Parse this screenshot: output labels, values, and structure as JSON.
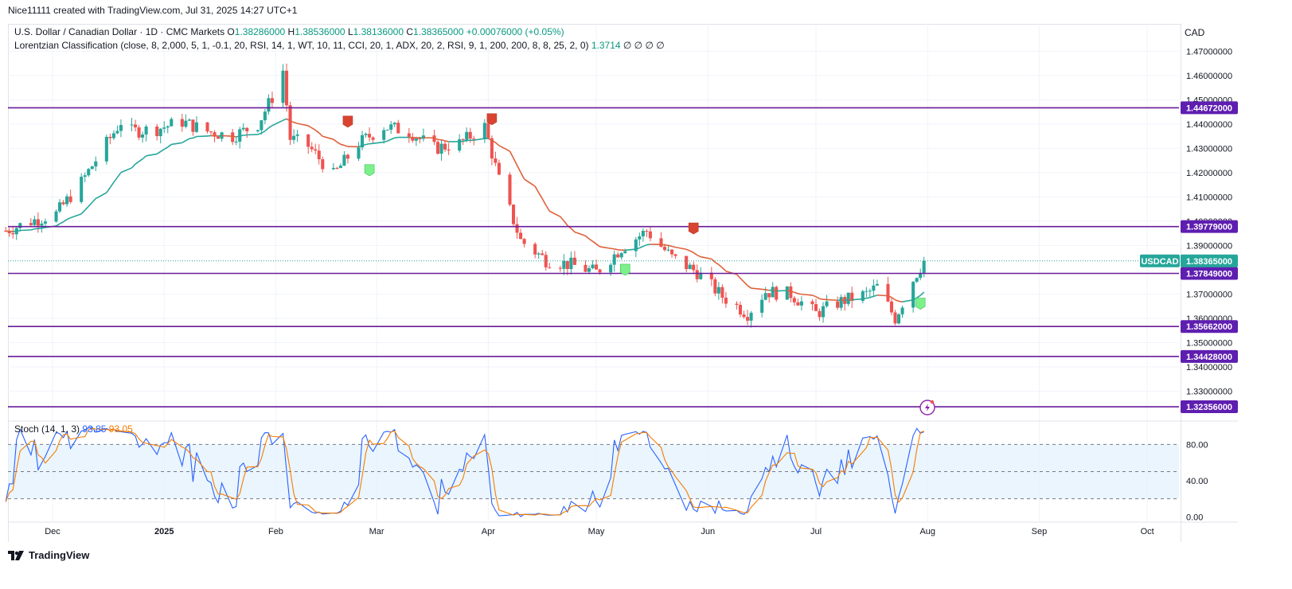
{
  "header": {
    "attribution": "Nice11111 created with TradingView.com, Jul 31, 2025 14:27 UTC+1",
    "currency": "CAD"
  },
  "legend": {
    "symbol": "U.S. Dollar / Canadian Dollar · 1D · CMC Markets",
    "o_label": "O",
    "o": "1.38286000",
    "h_label": "H",
    "h": "1.38536000",
    "l_label": "L",
    "l": "1.38136000",
    "c_label": "C",
    "c": "1.38365000",
    "change": "+0.00076000 (+0.05%)",
    "indicator": "Lorentzian Classification (close, 8, 2,000, 5, 1, -0.1, 20, RSI, 14, 1, WT, 10, 11, CCI, 20, 1, ADX, 20, 2, RSI, 9, 1, 200, 200, 8, 8, 25, 2, 0)",
    "indicator_value": "1.3714",
    "indicator_extra": "∅ ∅ ∅ ∅"
  },
  "stoch": {
    "label": "Stoch (14, 1, 3)",
    "k_value": "93.85",
    "d_value": "93.05",
    "k_color": "#2962ff",
    "d_color": "#f57c00"
  },
  "footer": {
    "brand": "TradingView"
  },
  "colors": {
    "up": "#26a69a",
    "down": "#ef5350",
    "level": "#6a1b9a",
    "level_tag": "#5e1eb0",
    "ma_down": "#e0603a",
    "ma_up": "#26a69a",
    "price_tag": "#26a69a"
  },
  "chart_data": {
    "type": "candlestick",
    "symbol_tag": "USDCAD",
    "last_price": 1.38365,
    "y_ticks": [
      "1.47000000",
      "1.46000000",
      "1.45000000",
      "1.44000000",
      "1.43000000",
      "1.42000000",
      "1.41000000",
      "1.40000000",
      "1.39000000",
      "1.37000000",
      "1.36000000",
      "1.35000000",
      "1.34000000",
      "1.33000000"
    ],
    "ylim": [
      1.318,
      1.478
    ],
    "levels": [
      {
        "value": 1.44672,
        "label": "1.44672000"
      },
      {
        "value": 1.39779,
        "label": "1.39779000"
      },
      {
        "value": 1.37849,
        "label": "1.37849000"
      },
      {
        "value": 1.35662,
        "label": "1.35662000"
      },
      {
        "value": 1.34428,
        "label": "1.34428000"
      },
      {
        "value": 1.32356,
        "label": "1.32356000"
      }
    ],
    "price_label": "1.38365000",
    "x_labels": [
      {
        "label": "Dec",
        "date": "2024-12-01"
      },
      {
        "label": "2025",
        "date": "2025-01-01",
        "bold": true
      },
      {
        "label": "Feb",
        "date": "2025-02-01"
      },
      {
        "label": "Mar",
        "date": "2025-03-01"
      },
      {
        "label": "Apr",
        "date": "2025-04-01"
      },
      {
        "label": "May",
        "date": "2025-05-01"
      },
      {
        "label": "Jun",
        "date": "2025-06-01"
      },
      {
        "label": "Jul",
        "date": "2025-07-01"
      },
      {
        "label": "Aug",
        "date": "2025-08-01"
      },
      {
        "label": "Sep",
        "date": "2025-09-01"
      },
      {
        "label": "Oct",
        "date": "2025-10-01"
      }
    ],
    "close_path": [
      [
        "2024-11-18",
        1.396
      ],
      [
        "2024-11-25",
        1.4
      ],
      [
        "2024-12-02",
        1.403
      ],
      [
        "2024-12-09",
        1.416
      ],
      [
        "2024-12-16",
        1.432
      ],
      [
        "2024-12-20",
        1.441
      ],
      [
        "2024-12-23",
        1.437
      ],
      [
        "2024-12-30",
        1.438
      ],
      [
        "2025-01-06",
        1.441
      ],
      [
        "2025-01-13",
        1.437
      ],
      [
        "2025-01-20",
        1.435
      ],
      [
        "2025-01-27",
        1.44
      ],
      [
        "2025-01-31",
        1.451
      ],
      [
        "2025-02-03",
        1.462
      ],
      [
        "2025-02-05",
        1.434
      ],
      [
        "2025-02-10",
        1.431
      ],
      [
        "2025-02-17",
        1.419
      ],
      [
        "2025-02-24",
        1.432
      ],
      [
        "2025-03-03",
        1.439
      ],
      [
        "2025-03-10",
        1.437
      ],
      [
        "2025-03-17",
        1.43
      ],
      [
        "2025-03-24",
        1.432
      ],
      [
        "2025-03-31",
        1.439
      ],
      [
        "2025-04-04",
        1.417
      ],
      [
        "2025-04-10",
        1.392
      ],
      [
        "2025-04-17",
        1.384
      ],
      [
        "2025-04-24",
        1.382
      ],
      [
        "2025-05-01",
        1.379
      ],
      [
        "2025-05-08",
        1.389
      ],
      [
        "2025-05-15",
        1.396
      ],
      [
        "2025-05-22",
        1.385
      ],
      [
        "2025-05-29",
        1.379
      ],
      [
        "2025-06-05",
        1.369
      ],
      [
        "2025-06-12",
        1.362
      ],
      [
        "2025-06-17",
        1.371
      ],
      [
        "2025-06-24",
        1.37
      ],
      [
        "2025-07-01",
        1.362
      ],
      [
        "2025-07-08",
        1.367
      ],
      [
        "2025-07-15",
        1.37
      ],
      [
        "2025-07-18",
        1.373
      ],
      [
        "2025-07-23",
        1.36
      ],
      [
        "2025-07-28",
        1.376
      ],
      [
        "2025-07-31",
        1.3837
      ]
    ],
    "signals": [
      {
        "type": "sell",
        "date": "2025-02-21",
        "price": 1.441
      },
      {
        "type": "buy",
        "date": "2025-02-27",
        "price": 1.421
      },
      {
        "type": "sell",
        "date": "2025-04-02",
        "price": 1.442
      },
      {
        "type": "buy",
        "date": "2025-05-09",
        "price": 1.38
      },
      {
        "type": "sell",
        "date": "2025-05-28",
        "price": 1.397
      },
      {
        "type": "buy",
        "date": "2025-07-30",
        "price": 1.366
      }
    ],
    "stoch_levels": [
      80,
      50,
      20
    ],
    "stoch_ticks": [
      "80.00",
      "40.00",
      "0.00"
    ],
    "stoch_ylim": [
      -5,
      105
    ]
  }
}
